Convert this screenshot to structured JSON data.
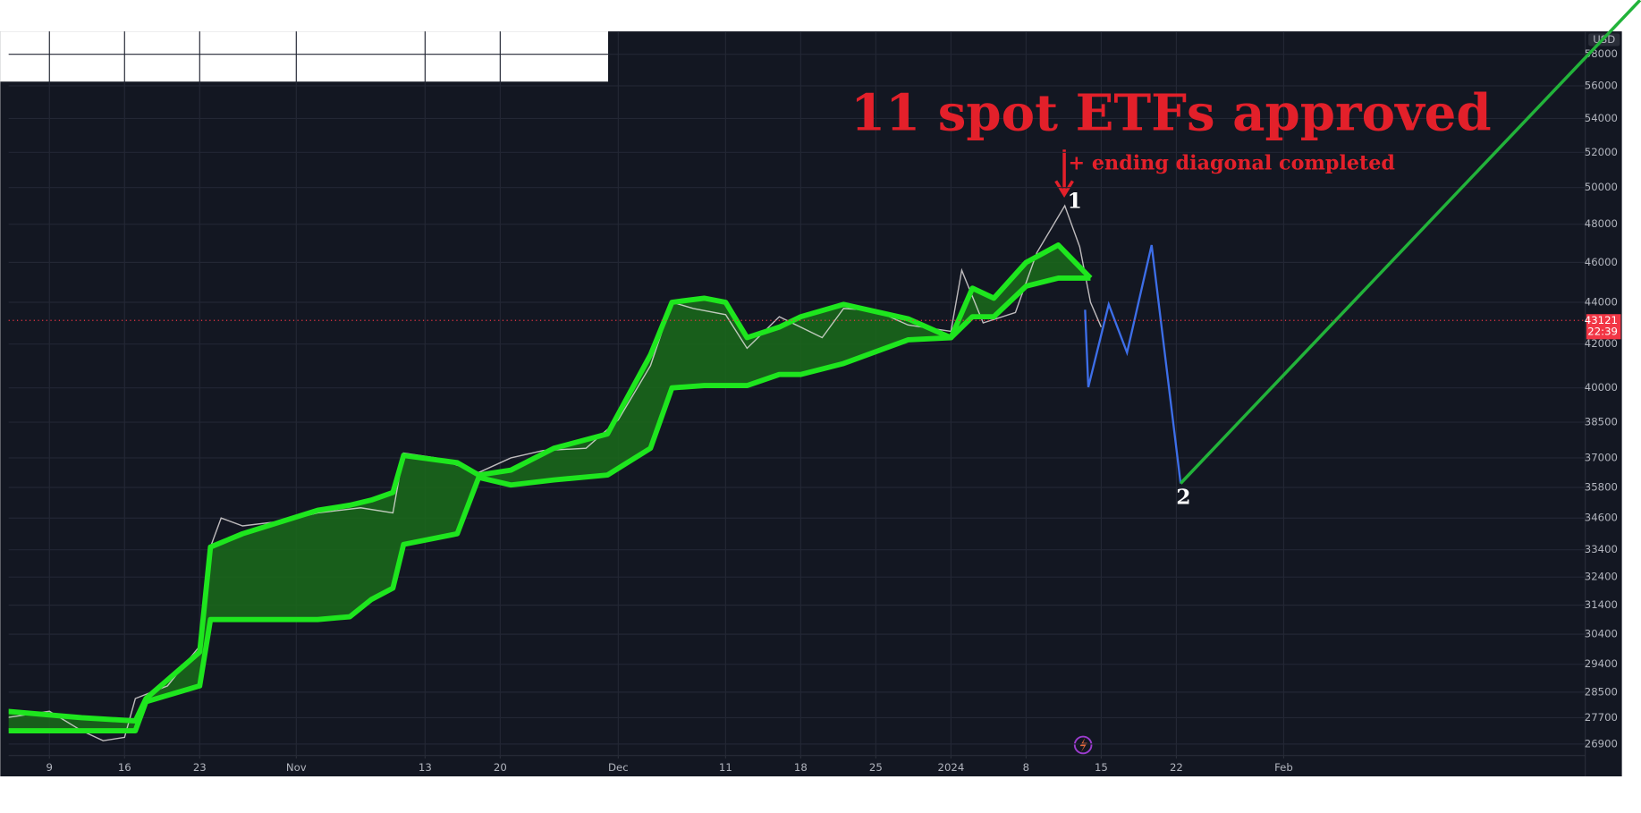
{
  "chart_data": {
    "type": "line",
    "log_y": true,
    "grid": true,
    "currency": "USD",
    "xlim": [
      -3.8,
      143.1
    ],
    "xticks": [
      {
        "value": 0,
        "label": "9"
      },
      {
        "value": 7,
        "label": "16"
      },
      {
        "value": 14,
        "label": "23"
      },
      {
        "value": 23,
        "label": "Nov"
      },
      {
        "value": 35,
        "label": "13"
      },
      {
        "value": 42,
        "label": "20"
      },
      {
        "value": 53,
        "label": "Dec"
      },
      {
        "value": 63,
        "label": "11"
      },
      {
        "value": 70,
        "label": "18"
      },
      {
        "value": 77,
        "label": "25"
      },
      {
        "value": 84,
        "label": "2024"
      },
      {
        "value": 91,
        "label": "8"
      },
      {
        "value": 98,
        "label": "15"
      },
      {
        "value": 105,
        "label": "22"
      },
      {
        "value": 115,
        "label": "Feb"
      }
    ],
    "ylim": [
      26560,
      59500
    ],
    "yticks": [
      26900,
      27700,
      28500,
      29400,
      30400,
      31400,
      32400,
      33400,
      34600,
      35800,
      37000,
      38500,
      40000,
      42000,
      44000,
      46000,
      48000,
      50000,
      52000,
      54000,
      56000,
      58000
    ],
    "price": {
      "color": "#e8e3e3",
      "x": [
        -4,
        0,
        3,
        5,
        7,
        8,
        11,
        14,
        15,
        16,
        18,
        22,
        25,
        29,
        32,
        33,
        36,
        40,
        43,
        46,
        50,
        53,
        56,
        58,
        60,
        63,
        65,
        68,
        72,
        74,
        77,
        80,
        84,
        85,
        87,
        90,
        92,
        94.6,
        96,
        97,
        98
      ],
      "values": [
        27700,
        27900,
        27300,
        27000,
        27100,
        28300,
        28700,
        30000,
        33500,
        34600,
        34300,
        34500,
        34800,
        35000,
        34800,
        37200,
        37000,
        36400,
        37000,
        37300,
        37400,
        38600,
        41000,
        44000,
        43700,
        43400,
        41800,
        43300,
        42300,
        43700,
        43600,
        42900,
        42600,
        45600,
        43000,
        43500,
        46500,
        49000,
        46800,
        44000,
        42800
      ]
    },
    "bands": {
      "color": "#1ee61e",
      "fill": "#1a6b1a",
      "x": [
        -4,
        3,
        8,
        9,
        14,
        15,
        18,
        25,
        28,
        30,
        32,
        33,
        38,
        40,
        43,
        47,
        52,
        56,
        58,
        61,
        63,
        65,
        68,
        70,
        74,
        80,
        84,
        86,
        88,
        91,
        94,
        97
      ],
      "upper": [
        27900,
        27700,
        27600,
        28300,
        29800,
        33500,
        34000,
        34900,
        35100,
        35300,
        35600,
        37100,
        36800,
        36300,
        36500,
        37400,
        38000,
        41500,
        44000,
        44200,
        44000,
        42300,
        42800,
        43300,
        43900,
        43200,
        42300,
        44700,
        44200,
        46000,
        46900,
        45200
      ],
      "lower": [
        27300,
        27300,
        27300,
        28200,
        28700,
        30900,
        30900,
        30900,
        31000,
        31600,
        32000,
        33600,
        34000,
        36200,
        35900,
        36100,
        36300,
        37400,
        40000,
        40100,
        40100,
        40100,
        40600,
        40600,
        41100,
        42200,
        42300,
        43300,
        43300,
        44800,
        45200,
        45200
      ]
    },
    "projection": {
      "color": "#3d6ee8",
      "x": [
        96.5,
        96.8,
        98.7,
        100.4,
        102.7,
        105.4
      ],
      "values": [
        43640,
        40030,
        43900,
        41600,
        46900,
        35960
      ]
    },
    "target_line": {
      "color": "#22b33a",
      "x": [
        105.4,
        148.2
      ],
      "values": [
        35960,
        61600
      ]
    },
    "last_price": 43121,
    "countdown": "22:39",
    "annotations": [
      {
        "text": "11 spot ETFs approved",
        "color": "#e3202a"
      },
      {
        "text": "+ ending diagonal completed",
        "color": "#e3202a"
      },
      {
        "text": "1",
        "color": "#ffffff"
      },
      {
        "text": "2",
        "color": "#ffffff"
      }
    ]
  }
}
